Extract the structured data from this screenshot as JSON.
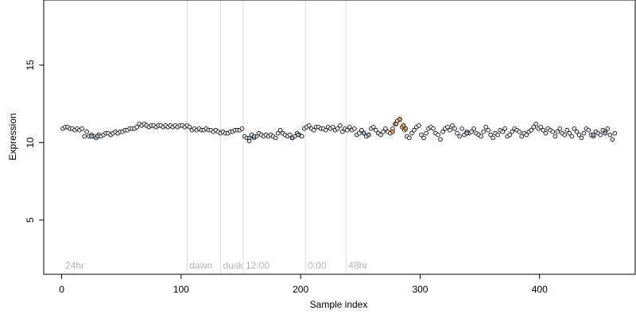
{
  "chart_data": {
    "type": "scatter",
    "title": "",
    "xlabel": "Sample index",
    "ylabel": "Expression",
    "xlim": [
      -15,
      480
    ],
    "ylim": [
      1.5,
      19.2
    ],
    "xticks": [
      0,
      100,
      200,
      300,
      400
    ],
    "yticks": [
      5,
      10,
      15
    ],
    "grid": false,
    "legend": "none",
    "colors": {
      "point_fill_main": "#e8e8e8",
      "point_fill_blue": "#9cb8d8",
      "point_fill_orange": "#f0a040",
      "point_stroke": "#000000",
      "region_line": "#dddddd",
      "region_text": "#b3b3b3",
      "frame": "#000000"
    },
    "region_markers": [
      {
        "label": "24hr",
        "x": 1
      },
      {
        "label": "dawn",
        "x": 105
      },
      {
        "label": "dusk",
        "x": 133
      },
      {
        "label": "12:00",
        "x": 152
      },
      {
        "label": "0:00",
        "x": 204
      },
      {
        "label": "48hr",
        "x": 238
      }
    ],
    "series": [
      {
        "values": [
          [
            1,
            10.9
          ],
          [
            3,
            11.0
          ],
          [
            5,
            11.0
          ],
          [
            7,
            10.9
          ],
          [
            9,
            10.9
          ],
          [
            11,
            10.8
          ],
          [
            13,
            10.9
          ],
          [
            15,
            10.8
          ],
          [
            17,
            10.9
          ],
          [
            19,
            10.4
          ],
          [
            21,
            10.7
          ],
          [
            23,
            10.4
          ],
          [
            25,
            10.5
          ],
          [
            27,
            10.4
          ],
          [
            29,
            10.3
          ],
          [
            31,
            10.5
          ],
          [
            33,
            10.4
          ],
          [
            35,
            10.5
          ],
          [
            37,
            10.6
          ],
          [
            39,
            10.6
          ],
          [
            41,
            10.5
          ],
          [
            43,
            10.6
          ],
          [
            45,
            10.7
          ],
          [
            47,
            10.6
          ],
          [
            49,
            10.7
          ],
          [
            51,
            10.7
          ],
          [
            53,
            10.8
          ],
          [
            55,
            10.8
          ],
          [
            57,
            10.9
          ],
          [
            59,
            10.9
          ],
          [
            61,
            10.9
          ],
          [
            63,
            11.0
          ],
          [
            65,
            11.2
          ],
          [
            67,
            11.1
          ],
          [
            69,
            11.2
          ],
          [
            71,
            11.1
          ],
          [
            73,
            11.0
          ],
          [
            75,
            11.1
          ],
          [
            77,
            11.1
          ],
          [
            79,
            11.0
          ],
          [
            81,
            11.1
          ],
          [
            83,
            11.1
          ],
          [
            85,
            11.0
          ],
          [
            87,
            11.1
          ],
          [
            89,
            11.0
          ],
          [
            91,
            11.1
          ],
          [
            93,
            11.0
          ],
          [
            95,
            11.1
          ],
          [
            97,
            11.0
          ],
          [
            99,
            11.1
          ],
          [
            101,
            11.1
          ],
          [
            103,
            11.0
          ],
          [
            105,
            11.1
          ],
          [
            107,
            11.0
          ],
          [
            109,
            10.8
          ],
          [
            111,
            10.9
          ],
          [
            113,
            10.8
          ],
          [
            115,
            10.9
          ],
          [
            117,
            10.8
          ],
          [
            119,
            10.8
          ],
          [
            121,
            10.9
          ],
          [
            123,
            10.8
          ],
          [
            125,
            10.8
          ],
          [
            127,
            10.7
          ],
          [
            129,
            10.8
          ],
          [
            131,
            10.7
          ],
          [
            133,
            10.6
          ],
          [
            135,
            10.7
          ],
          [
            137,
            10.6
          ],
          [
            139,
            10.6
          ],
          [
            141,
            10.7
          ],
          [
            143,
            10.7
          ],
          [
            145,
            10.8
          ],
          [
            147,
            10.8
          ],
          [
            149,
            10.8
          ],
          [
            151,
            10.9
          ],
          [
            153,
            10.4
          ],
          [
            155,
            10.3
          ],
          [
            157,
            10.1
          ],
          [
            159,
            10.5
          ],
          [
            161,
            10.3
          ],
          [
            163,
            10.4
          ],
          [
            165,
            10.6
          ],
          [
            167,
            10.5
          ],
          [
            169,
            10.4
          ],
          [
            171,
            10.5
          ],
          [
            173,
            10.4
          ],
          [
            175,
            10.5
          ],
          [
            177,
            10.4
          ],
          [
            179,
            10.3
          ],
          [
            181,
            10.6
          ],
          [
            183,
            10.8
          ],
          [
            185,
            10.6
          ],
          [
            187,
            10.5
          ],
          [
            189,
            10.4
          ],
          [
            191,
            10.5
          ],
          [
            193,
            10.3
          ],
          [
            195,
            10.4
          ],
          [
            197,
            10.6
          ],
          [
            199,
            10.5
          ],
          [
            201,
            10.4
          ],
          [
            203,
            10.9
          ],
          [
            205,
            11.0
          ],
          [
            207,
            11.1
          ],
          [
            209,
            10.9
          ],
          [
            211,
            10.8
          ],
          [
            213,
            11.0
          ],
          [
            215,
            11.0
          ],
          [
            217,
            10.9
          ],
          [
            219,
            10.9
          ],
          [
            221,
            10.8
          ],
          [
            223,
            11.0
          ],
          [
            225,
            10.9
          ],
          [
            227,
            11.0
          ],
          [
            229,
            10.8
          ],
          [
            231,
            10.9
          ],
          [
            233,
            11.1
          ],
          [
            235,
            10.7
          ],
          [
            237,
            10.9
          ],
          [
            239,
            10.8
          ],
          [
            241,
            11.0
          ],
          [
            243,
            10.8
          ],
          [
            245,
            10.9
          ],
          [
            247,
            10.5
          ],
          [
            249,
            10.6
          ],
          [
            251,
            10.8
          ],
          [
            253,
            10.6
          ],
          [
            255,
            10.4
          ],
          [
            257,
            10.5
          ],
          [
            259,
            10.9
          ],
          [
            261,
            11.0
          ],
          [
            263,
            10.8
          ],
          [
            265,
            10.6
          ],
          [
            267,
            10.5
          ],
          [
            269,
            10.7
          ],
          [
            271,
            10.9
          ],
          [
            273,
            10.7
          ],
          [
            275,
            10.6
          ],
          [
            277,
            10.9
          ],
          [
            279,
            11.2
          ],
          [
            281,
            11.4
          ],
          [
            283,
            11.5
          ],
          [
            285,
            11.0
          ],
          [
            287,
            10.8
          ],
          [
            289,
            10.4
          ],
          [
            291,
            10.3
          ],
          [
            293,
            10.6
          ],
          [
            295,
            10.8
          ],
          [
            297,
            11.0
          ],
          [
            299,
            11.1
          ],
          [
            301,
            10.5
          ],
          [
            303,
            10.3
          ],
          [
            305,
            10.6
          ],
          [
            307,
            10.9
          ],
          [
            309,
            11.0
          ],
          [
            311,
            10.9
          ],
          [
            313,
            10.6
          ],
          [
            315,
            10.5
          ],
          [
            317,
            10.2
          ],
          [
            319,
            10.7
          ],
          [
            321,
            10.9
          ],
          [
            323,
            11.0
          ],
          [
            325,
            10.8
          ],
          [
            327,
            11.1
          ],
          [
            329,
            10.9
          ],
          [
            331,
            10.6
          ],
          [
            333,
            10.4
          ],
          [
            335,
            10.9
          ],
          [
            337,
            10.5
          ],
          [
            339,
            10.7
          ],
          [
            341,
            10.6
          ],
          [
            343,
            10.7
          ],
          [
            345,
            10.9
          ],
          [
            347,
            10.6
          ],
          [
            349,
            10.5
          ],
          [
            351,
            10.4
          ],
          [
            353,
            10.7
          ],
          [
            355,
            11.0
          ],
          [
            357,
            10.8
          ],
          [
            359,
            10.5
          ],
          [
            361,
            10.3
          ],
          [
            363,
            10.6
          ],
          [
            365,
            10.5
          ],
          [
            367,
            10.8
          ],
          [
            369,
            10.7
          ],
          [
            371,
            10.9
          ],
          [
            373,
            10.4
          ],
          [
            375,
            10.5
          ],
          [
            377,
            10.7
          ],
          [
            379,
            10.9
          ],
          [
            381,
            10.8
          ],
          [
            383,
            10.7
          ],
          [
            385,
            10.4
          ],
          [
            387,
            10.6
          ],
          [
            389,
            10.5
          ],
          [
            391,
            10.7
          ],
          [
            393,
            10.8
          ],
          [
            395,
            11.0
          ],
          [
            397,
            11.2
          ],
          [
            399,
            10.9
          ],
          [
            401,
            11.0
          ],
          [
            403,
            10.8
          ],
          [
            405,
            10.6
          ],
          [
            407,
            10.9
          ],
          [
            409,
            10.8
          ],
          [
            411,
            10.7
          ],
          [
            413,
            10.4
          ],
          [
            415,
            10.7
          ],
          [
            417,
            10.9
          ],
          [
            419,
            10.6
          ],
          [
            421,
            10.5
          ],
          [
            423,
            10.8
          ],
          [
            425,
            10.6
          ],
          [
            427,
            10.4
          ],
          [
            429,
            10.9
          ],
          [
            431,
            10.7
          ],
          [
            433,
            10.5
          ],
          [
            435,
            10.3
          ],
          [
            437,
            10.6
          ],
          [
            439,
            10.9
          ],
          [
            441,
            10.8
          ],
          [
            443,
            10.5
          ],
          [
            445,
            10.4
          ],
          [
            447,
            10.7
          ],
          [
            449,
            10.6
          ],
          [
            451,
            10.5
          ],
          [
            453,
            10.8
          ],
          [
            455,
            10.7
          ],
          [
            457,
            10.9
          ],
          [
            459,
            10.5
          ],
          [
            461,
            10.2
          ],
          [
            463,
            10.6
          ]
        ]
      },
      {
        "values": [
          [
            25,
            10.4
          ],
          [
            30,
            10.4
          ],
          [
            157,
            10.3
          ],
          [
            161,
            10.4
          ],
          [
            193,
            10.3
          ],
          [
            198,
            10.5
          ],
          [
            253,
            10.6
          ],
          [
            257,
            10.5
          ],
          [
            339,
            10.6
          ],
          [
            445,
            10.5
          ],
          [
            455,
            10.6
          ]
        ]
      },
      {
        "values": [
          [
            277,
            10.7
          ],
          [
            280,
            11.2
          ],
          [
            283,
            11.5
          ],
          [
            286,
            11.1
          ],
          [
            288,
            10.9
          ]
        ]
      }
    ]
  }
}
